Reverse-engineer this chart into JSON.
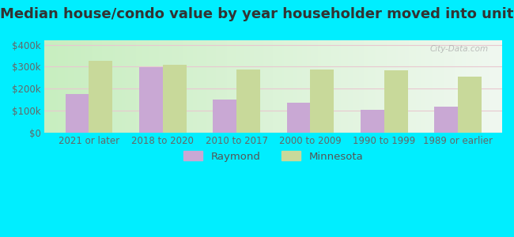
{
  "title": "Median house/condo value by year householder moved into unit",
  "categories": [
    "2021 or later",
    "2018 to 2020",
    "2010 to 2017",
    "2000 to 2009",
    "1990 to 1999",
    "1989 or earlier"
  ],
  "raymond_values": [
    175000,
    298000,
    150000,
    135000,
    103000,
    118000
  ],
  "minnesota_values": [
    325000,
    308000,
    288000,
    287000,
    283000,
    255000
  ],
  "raymond_color": "#c9a8d4",
  "minnesota_color": "#c8d99a",
  "background_color": "#00eeff",
  "ylabel_ticks": [
    0,
    100000,
    200000,
    300000,
    400000
  ],
  "ylabel_labels": [
    "$0",
    "$100k",
    "$200k",
    "$300k",
    "$400k"
  ],
  "ylim": [
    0,
    420000
  ],
  "legend_labels": [
    "Raymond",
    "Minnesota"
  ],
  "watermark": "City-Data.com",
  "title_fontsize": 13,
  "tick_fontsize": 8.5,
  "legend_fontsize": 9.5,
  "bar_width": 0.32,
  "grid_color": "#e8c8d0",
  "grad_left": "#c8eec0",
  "grad_right": "#f0f8f0"
}
